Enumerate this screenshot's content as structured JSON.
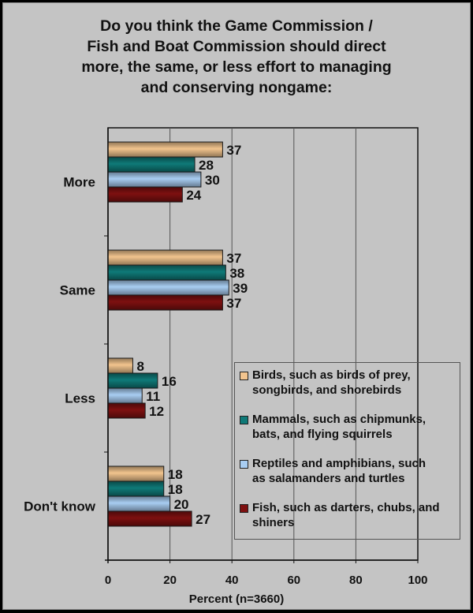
{
  "chart_data": {
    "type": "bar",
    "orientation": "horizontal",
    "title_lines": [
      "Do you think the Game Commission /",
      "Fish and Boat Commission should direct",
      "more, the same, or less effort to managing",
      "and conserving nongame:"
    ],
    "categories": [
      "More",
      "Same",
      "Less",
      "Don't know"
    ],
    "series": [
      {
        "name": "Birds, such as birds of prey, songbirds, and shorebirds",
        "legend_lines": [
          "Birds, such as birds of prey,",
          "songbirds, and shorebirds"
        ],
        "color": "#f2c48e",
        "values": [
          37,
          37,
          8,
          18
        ]
      },
      {
        "name": "Mammals, such as chipmunks, bats, and flying squirrels",
        "legend_lines": [
          "Mammals, such as chipmunks,",
          "bats, and flying squirrels"
        ],
        "color": "#0f7a78",
        "values": [
          28,
          38,
          16,
          18
        ]
      },
      {
        "name": "Reptiles and amphibians, such as salamanders and turtles",
        "legend_lines": [
          "Reptiles and amphibians, such",
          "as salamanders and turtles"
        ],
        "color": "#a8cdf2",
        "values": [
          30,
          39,
          11,
          20
        ]
      },
      {
        "name": "Fish, such as darters, chubs, and shiners",
        "legend_lines": [
          "Fish, such as darters, chubs, and",
          "shiners"
        ],
        "color": "#7e1010",
        "values": [
          24,
          37,
          12,
          27
        ]
      }
    ],
    "xlabel": "Percent (n=3660)",
    "ylabel": "",
    "xlim": [
      0,
      100
    ],
    "xticks": [
      0,
      20,
      40,
      60,
      80,
      100
    ],
    "grid": true,
    "legend_position": "bottom-right"
  }
}
